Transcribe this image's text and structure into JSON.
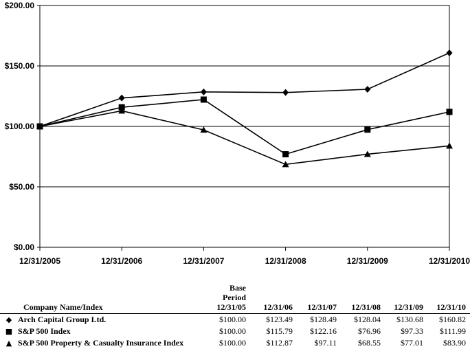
{
  "chart_data": {
    "type": "line",
    "x": [
      "12/31/2005",
      "12/31/2006",
      "12/31/2007",
      "12/31/2008",
      "12/31/2009",
      "12/31/2010"
    ],
    "ylim": [
      0,
      200
    ],
    "yticks": [
      "$0.00",
      "$50.00",
      "$100.00",
      "$150.00",
      "$200.00"
    ],
    "ytick_values": [
      0,
      50,
      100,
      150,
      200
    ],
    "grid": true,
    "series": [
      {
        "name": "Arch Capital Group Ltd.",
        "marker": "diamond",
        "values": [
          100.0,
          123.49,
          128.49,
          128.04,
          130.68,
          160.82
        ]
      },
      {
        "name": "S&P 500 Index",
        "marker": "square",
        "values": [
          100.0,
          115.79,
          122.16,
          76.96,
          97.33,
          111.99
        ]
      },
      {
        "name": "S&P 500 Property & Casualty Insurance Index",
        "marker": "triangle",
        "values": [
          100.0,
          112.87,
          97.11,
          68.55,
          77.01,
          83.9
        ]
      }
    ]
  },
  "table": {
    "name_header": "Company Name/Index",
    "base_header_line1": "Base",
    "base_header_line2": "Period",
    "columns": [
      "12/31/05",
      "12/31/06",
      "12/31/07",
      "12/31/08",
      "12/31/09",
      "12/31/10"
    ],
    "rows": [
      {
        "marker": "◆",
        "name": "Arch Capital Group Ltd.",
        "values": [
          "$100.00",
          "$123.49",
          "$128.49",
          "$128.04",
          "$130.68",
          "$160.82"
        ]
      },
      {
        "marker": "■",
        "name": "S&P 500 Index",
        "values": [
          "$100.00",
          "$115.79",
          "$122.16",
          "$76.96",
          "$97.33",
          "$111.99"
        ]
      },
      {
        "marker": "▲",
        "name": "S&P 500 Property & Casualty Insurance Index",
        "values": [
          "$100.00",
          "$112.87",
          "$97.11",
          "$68.55",
          "$77.01",
          "$83.90"
        ]
      }
    ]
  }
}
